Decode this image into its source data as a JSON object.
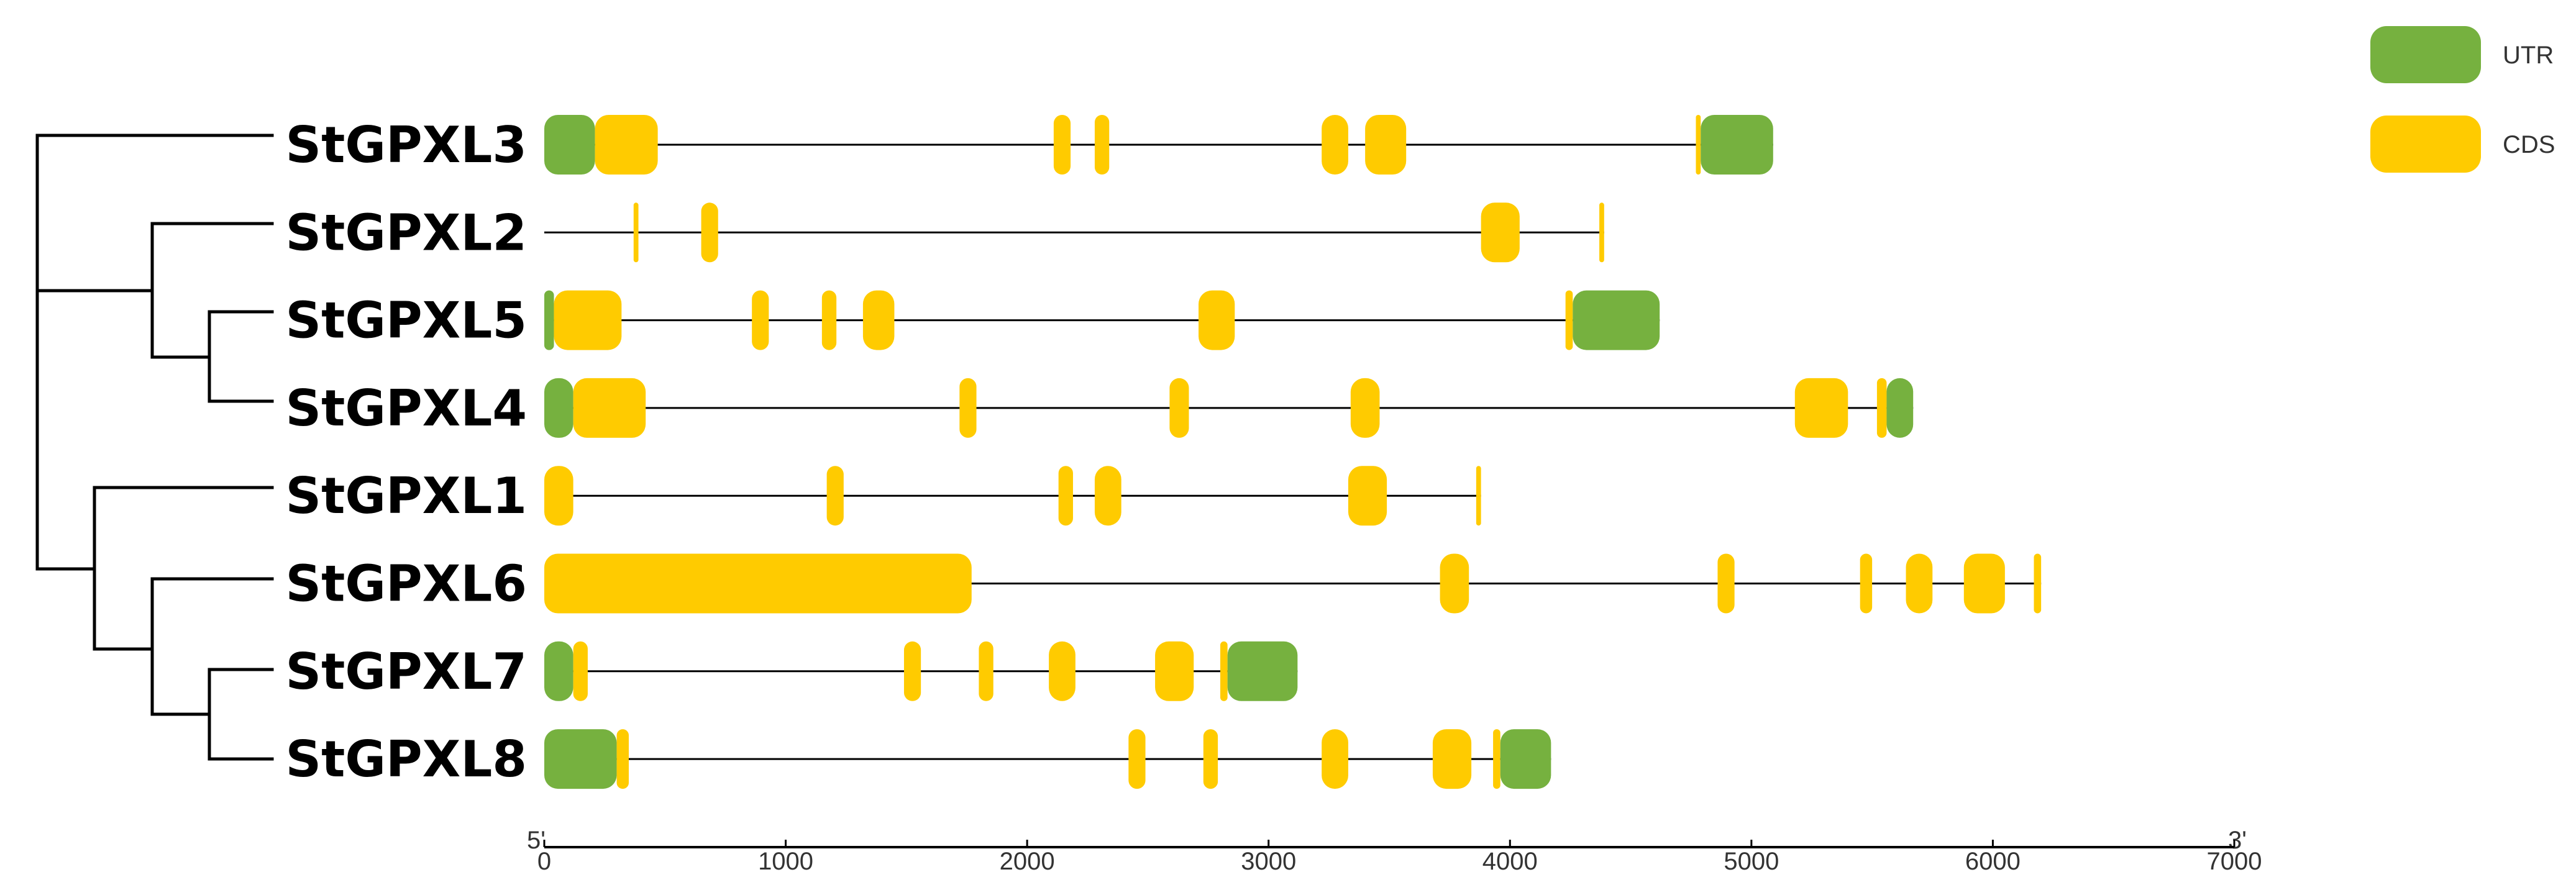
{
  "colors": {
    "utr": "#76b13f",
    "cds": "#ffcb00",
    "line": "#000000"
  },
  "legend": [
    {
      "key": "utr",
      "label": "UTR"
    },
    {
      "key": "cds",
      "label": "CDS"
    }
  ],
  "axis": {
    "start_label": "5'",
    "end_label": "3'",
    "min": 0,
    "max": 7000,
    "ticks": [
      {
        "value": 0,
        "label": "0"
      },
      {
        "value": 1000,
        "label": "1000"
      },
      {
        "value": 2000,
        "label": "2000"
      },
      {
        "value": 3000,
        "label": "3000"
      },
      {
        "value": 4000,
        "label": "4000"
      },
      {
        "value": 5000,
        "label": "5000"
      },
      {
        "value": 6000,
        "label": "6000"
      },
      {
        "value": 7000,
        "label": "7000"
      }
    ]
  },
  "genes": [
    {
      "name": "StGPXL3",
      "length": 5090,
      "features": [
        {
          "type": "utr",
          "start": 0,
          "end": 210
        },
        {
          "type": "cds",
          "start": 210,
          "end": 470
        },
        {
          "type": "cds",
          "start": 2110,
          "end": 2180
        },
        {
          "type": "cds",
          "start": 2280,
          "end": 2340
        },
        {
          "type": "cds",
          "start": 3220,
          "end": 3330
        },
        {
          "type": "cds",
          "start": 3400,
          "end": 3570
        },
        {
          "type": "cds",
          "start": 4770,
          "end": 4790
        },
        {
          "type": "utr",
          "start": 4790,
          "end": 5090
        }
      ]
    },
    {
      "name": "StGPXL2",
      "length": 4390,
      "features": [
        {
          "type": "cds",
          "start": 370,
          "end": 390
        },
        {
          "type": "cds",
          "start": 650,
          "end": 720
        },
        {
          "type": "cds",
          "start": 3880,
          "end": 4040
        },
        {
          "type": "cds",
          "start": 4370,
          "end": 4390
        }
      ]
    },
    {
      "name": "StGPXL5",
      "length": 4620,
      "features": [
        {
          "type": "utr",
          "start": 0,
          "end": 40
        },
        {
          "type": "cds",
          "start": 40,
          "end": 320
        },
        {
          "type": "cds",
          "start": 860,
          "end": 930
        },
        {
          "type": "cds",
          "start": 1150,
          "end": 1210
        },
        {
          "type": "cds",
          "start": 1320,
          "end": 1450
        },
        {
          "type": "cds",
          "start": 2710,
          "end": 2860
        },
        {
          "type": "cds",
          "start": 4230,
          "end": 4260
        },
        {
          "type": "utr",
          "start": 4260,
          "end": 4620
        }
      ]
    },
    {
      "name": "StGPXL4",
      "length": 5670,
      "features": [
        {
          "type": "utr",
          "start": 0,
          "end": 120
        },
        {
          "type": "cds",
          "start": 120,
          "end": 420
        },
        {
          "type": "cds",
          "start": 1720,
          "end": 1790
        },
        {
          "type": "cds",
          "start": 2590,
          "end": 2670
        },
        {
          "type": "cds",
          "start": 3340,
          "end": 3460
        },
        {
          "type": "cds",
          "start": 5180,
          "end": 5400
        },
        {
          "type": "cds",
          "start": 5520,
          "end": 5560
        },
        {
          "type": "utr",
          "start": 5560,
          "end": 5670
        }
      ]
    },
    {
      "name": "StGPXL1",
      "length": 3880,
      "features": [
        {
          "type": "cds",
          "start": 0,
          "end": 120
        },
        {
          "type": "cds",
          "start": 1170,
          "end": 1240
        },
        {
          "type": "cds",
          "start": 2130,
          "end": 2190
        },
        {
          "type": "cds",
          "start": 2280,
          "end": 2390
        },
        {
          "type": "cds",
          "start": 3330,
          "end": 3490
        },
        {
          "type": "cds",
          "start": 3860,
          "end": 3880
        }
      ]
    },
    {
      "name": "StGPXL6",
      "length": 6200,
      "features": [
        {
          "type": "cds",
          "start": 0,
          "end": 1770
        },
        {
          "type": "cds",
          "start": 3710,
          "end": 3830
        },
        {
          "type": "cds",
          "start": 4860,
          "end": 4930
        },
        {
          "type": "cds",
          "start": 5450,
          "end": 5500
        },
        {
          "type": "cds",
          "start": 5640,
          "end": 5750
        },
        {
          "type": "cds",
          "start": 5880,
          "end": 6050
        },
        {
          "type": "cds",
          "start": 6170,
          "end": 6200
        }
      ]
    },
    {
      "name": "StGPXL7",
      "length": 3120,
      "features": [
        {
          "type": "utr",
          "start": 0,
          "end": 120
        },
        {
          "type": "cds",
          "start": 120,
          "end": 180
        },
        {
          "type": "cds",
          "start": 1490,
          "end": 1560
        },
        {
          "type": "cds",
          "start": 1800,
          "end": 1860
        },
        {
          "type": "cds",
          "start": 2090,
          "end": 2200
        },
        {
          "type": "cds",
          "start": 2530,
          "end": 2690
        },
        {
          "type": "cds",
          "start": 2800,
          "end": 2830
        },
        {
          "type": "utr",
          "start": 2830,
          "end": 3120
        }
      ]
    },
    {
      "name": "StGPXL8",
      "length": 4170,
      "features": [
        {
          "type": "utr",
          "start": 0,
          "end": 300
        },
        {
          "type": "cds",
          "start": 300,
          "end": 350
        },
        {
          "type": "cds",
          "start": 2420,
          "end": 2490
        },
        {
          "type": "cds",
          "start": 2730,
          "end": 2790
        },
        {
          "type": "cds",
          "start": 3220,
          "end": 3330
        },
        {
          "type": "cds",
          "start": 3680,
          "end": 3840
        },
        {
          "type": "cds",
          "start": 3930,
          "end": 3960
        },
        {
          "type": "utr",
          "start": 3960,
          "end": 4170
        }
      ]
    }
  ]
}
